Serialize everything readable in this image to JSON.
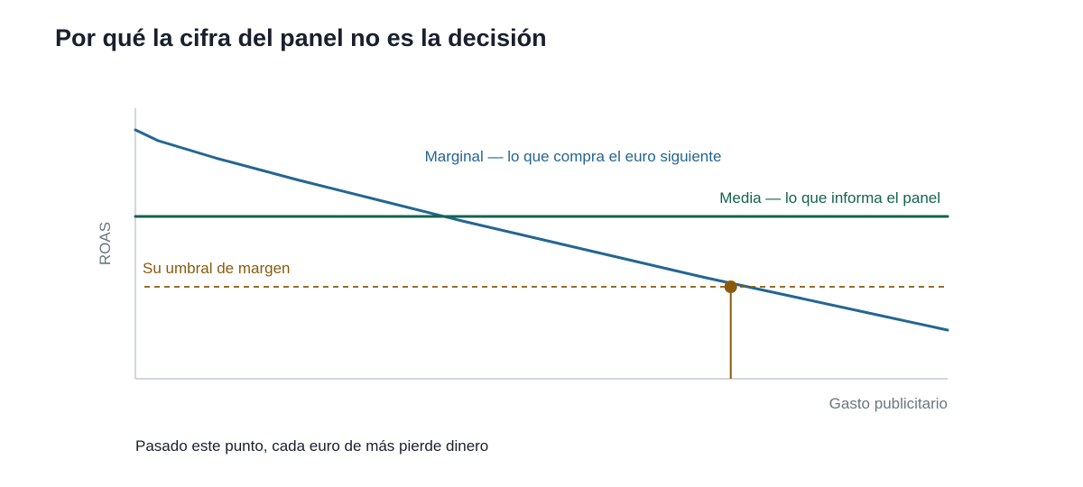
{
  "chart_data": {
    "type": "line",
    "title": "Por qué la cifra del panel no es la decisión",
    "xlabel": "Gasto publicitario",
    "ylabel": "ROAS",
    "xlim": [
      0,
      1
    ],
    "ylim": [
      0,
      1
    ],
    "grid": false,
    "series": [
      {
        "name": "Marginal — lo que compra el euro siguiente",
        "color": "#236694",
        "x": [
          0,
          0.028,
          0.1,
          0.2,
          0.3,
          0.4,
          0.5,
          0.6,
          0.7,
          0.8,
          0.9,
          1.0
        ],
        "y": [
          0.92,
          0.88,
          0.815,
          0.735,
          0.66,
          0.585,
          0.515,
          0.445,
          0.375,
          0.31,
          0.245,
          0.18
        ]
      },
      {
        "name": "Media — lo que informa el panel",
        "color": "#14634f",
        "x": [
          0,
          1
        ],
        "y": [
          0.6,
          0.6
        ]
      }
    ],
    "threshold": {
      "label": "Su umbral de margen",
      "y": 0.34,
      "color": "#8a5a0b",
      "style": "dashed"
    },
    "marker": {
      "x": 0.733,
      "y": 0.34,
      "color": "#8a5a0b",
      "caption": "Pasado este punto, cada euro de más pierde dinero"
    }
  }
}
